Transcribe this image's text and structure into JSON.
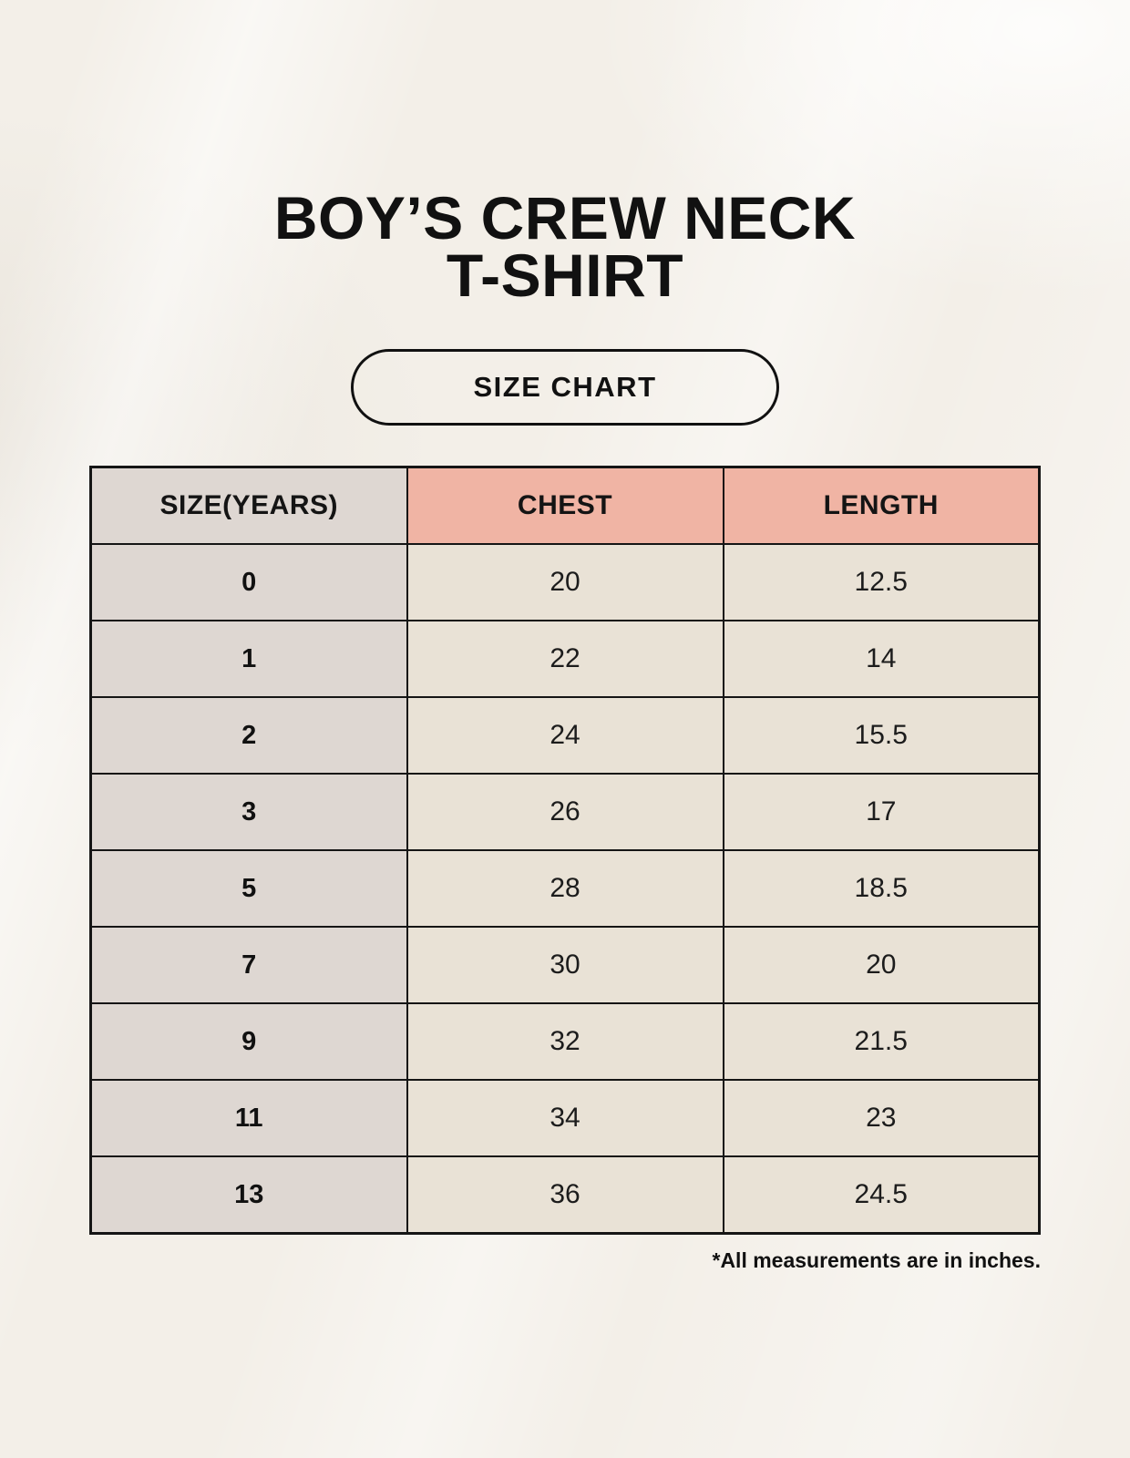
{
  "title": {
    "line1": "BOY’S CREW NECK",
    "line2": "T-SHIRT"
  },
  "badge_label": "SIZE CHART",
  "footnote": "*All measurements are in inches.",
  "chart_data": {
    "type": "table",
    "title": "BOY’S CREW NECK T-SHIRT SIZE CHART",
    "columns": [
      "SIZE(YEARS)",
      "CHEST",
      "LENGTH"
    ],
    "rows": [
      [
        "0",
        "20",
        "12.5"
      ],
      [
        "1",
        "22",
        "14"
      ],
      [
        "2",
        "24",
        "15.5"
      ],
      [
        "3",
        "26",
        "17"
      ],
      [
        "5",
        "28",
        "18.5"
      ],
      [
        "7",
        "30",
        "20"
      ],
      [
        "9",
        "32",
        "21.5"
      ],
      [
        "11",
        "34",
        "23"
      ],
      [
        "13",
        "36",
        "24.5"
      ]
    ],
    "units": "inches"
  },
  "colors": {
    "background": "#F3EFE8",
    "size_column_bg": "#DED7D2",
    "header_accent_bg": "#F0B4A4",
    "data_cell_bg": "#E9E2D6",
    "border": "#151515",
    "text": "#141414"
  }
}
